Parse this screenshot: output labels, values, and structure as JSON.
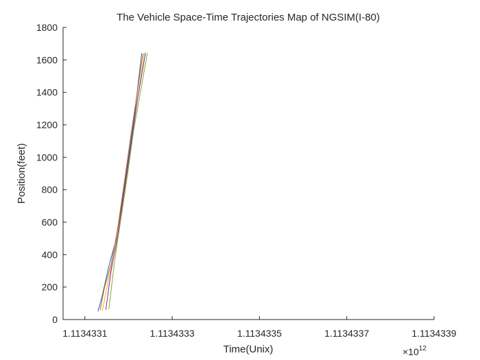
{
  "chart_data": {
    "type": "line",
    "title": "The Vehicle Space-Time Trajectories Map of NGSIM(I-80)",
    "xlabel": "Time(Unix)",
    "ylabel": "Position(feet)",
    "xlim": [
      1.11343305,
      1.1134339
    ],
    "ylim": [
      0,
      1800
    ],
    "x_exponent_label": "×10",
    "x_exponent_power": "12",
    "xticks": [
      1.1134331,
      1.1134333,
      1.1134335,
      1.1134337,
      1.1134339
    ],
    "xtick_labels": [
      "1.1134331",
      "1.1134333",
      "1.1134335",
      "1.1134337",
      "1.1134339"
    ],
    "yticks": [
      0,
      200,
      400,
      600,
      800,
      1000,
      1200,
      1400,
      1600,
      1800
    ],
    "ytick_labels": [
      "0",
      "200",
      "400",
      "600",
      "800",
      "1000",
      "1200",
      "1400",
      "1600",
      "1800"
    ],
    "grid": false,
    "legend": "none",
    "series_colors": [
      "#0072BD",
      "#D95319",
      "#EDB120",
      "#7E2F8E",
      "#77AC30",
      "#4DBEEE",
      "#A2142F"
    ],
    "series": [
      {
        "values": [
          [
            1.11343313,
            50
          ],
          [
            1.11343314,
            150
          ],
          [
            1.113433155,
            330
          ],
          [
            1.11343317,
            480
          ],
          [
            1.113433185,
            720
          ],
          [
            1.1134332,
            1000
          ],
          [
            1.113433215,
            1290
          ],
          [
            1.11343323,
            1640
          ]
        ]
      },
      {
        "values": [
          [
            1.113433135,
            60
          ],
          [
            1.113433145,
            200
          ],
          [
            1.11343316,
            340
          ],
          [
            1.113433175,
            560
          ],
          [
            1.11343319,
            840
          ],
          [
            1.113433205,
            1130
          ],
          [
            1.11343322,
            1400
          ],
          [
            1.113433233,
            1640
          ]
        ]
      },
      {
        "values": [
          [
            1.11343314,
            55
          ],
          [
            1.113433155,
            260
          ],
          [
            1.11343317,
            430
          ],
          [
            1.113433185,
            680
          ],
          [
            1.1134332,
            960
          ],
          [
            1.113433215,
            1250
          ],
          [
            1.113433236,
            1640
          ]
        ]
      },
      {
        "values": [
          [
            1.113433148,
            60
          ],
          [
            1.11343316,
            300
          ],
          [
            1.113433175,
            520
          ],
          [
            1.11343319,
            790
          ],
          [
            1.113433205,
            1070
          ],
          [
            1.11343322,
            1350
          ],
          [
            1.113433239,
            1645
          ]
        ]
      },
      {
        "values": [
          [
            1.113433155,
            65
          ],
          [
            1.113433168,
            360
          ],
          [
            1.113433182,
            610
          ],
          [
            1.113433197,
            880
          ],
          [
            1.113433212,
            1170
          ],
          [
            1.113433243,
            1640
          ]
        ]
      }
    ]
  }
}
